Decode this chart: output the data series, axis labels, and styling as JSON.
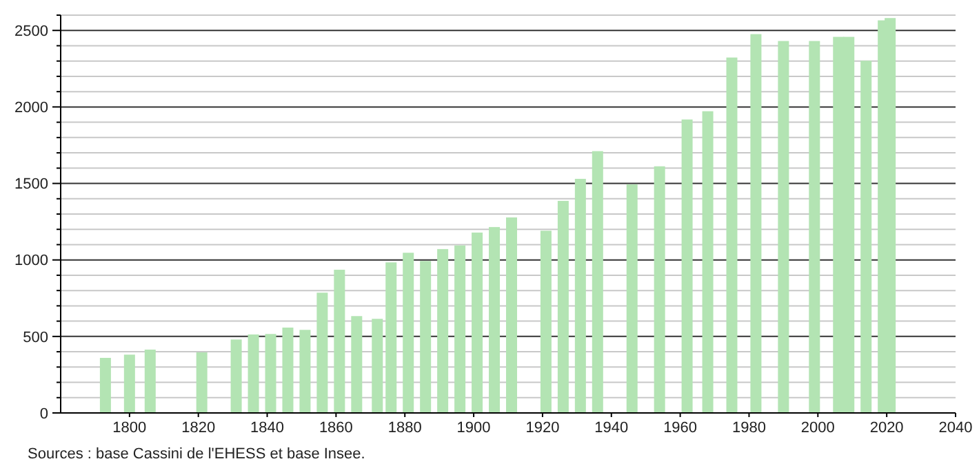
{
  "chart_data": {
    "type": "bar",
    "x": [
      1793,
      1800,
      1806,
      1821,
      1831,
      1836,
      1841,
      1846,
      1851,
      1856,
      1861,
      1866,
      1872,
      1876,
      1881,
      1886,
      1891,
      1896,
      1901,
      1906,
      1911,
      1921,
      1926,
      1931,
      1936,
      1946,
      1954,
      1962,
      1968,
      1975,
      1982,
      1990,
      1999,
      2006,
      2009,
      2014,
      2019,
      2021
    ],
    "values": [
      360,
      381,
      414,
      396,
      480,
      513,
      516,
      558,
      543,
      786,
      936,
      633,
      615,
      984,
      1047,
      993,
      1071,
      1095,
      1179,
      1215,
      1278,
      1191,
      1386,
      1530,
      1711,
      1494,
      1612,
      1918,
      1972,
      2323,
      2476,
      2431,
      2431,
      2458,
      2458,
      2302,
      2566,
      2581
    ],
    "color": "#b3e4b3",
    "xlim": [
      1780,
      2040
    ],
    "xticks": [
      1800,
      1820,
      1840,
      1860,
      1880,
      1900,
      1920,
      1940,
      1960,
      1980,
      2000,
      2020,
      2040
    ],
    "ylim": [
      0,
      2600
    ],
    "yticks": [
      0,
      {
        "value": 100,
        "label": null
      },
      {
        "value": 200,
        "label": null
      },
      {
        "value": 300,
        "label": null
      },
      {
        "value": 400,
        "label": null
      },
      500,
      {
        "value": 600,
        "label": null
      },
      {
        "value": 700,
        "label": null
      },
      {
        "value": 800,
        "label": null
      },
      {
        "value": 900,
        "label": null
      },
      1000,
      {
        "value": 1100,
        "label": null
      },
      {
        "value": 1200,
        "label": null
      },
      {
        "value": 1300,
        "label": null
      },
      {
        "value": 1400,
        "label": null
      },
      1500,
      {
        "value": 1600,
        "label": null
      },
      {
        "value": 1700,
        "label": null
      },
      {
        "value": 1800,
        "label": null
      },
      {
        "value": 1900,
        "label": null
      },
      2000,
      {
        "value": 2100,
        "label": null
      },
      {
        "value": 2200,
        "label": null
      },
      {
        "value": 2300,
        "label": null
      },
      {
        "value": 2400,
        "label": null
      },
      2500,
      {
        "value": 2600,
        "label": null
      }
    ],
    "grid": true,
    "annotations": [
      "Sources : base Cassini de l'EHESS et base Insee."
    ]
  }
}
